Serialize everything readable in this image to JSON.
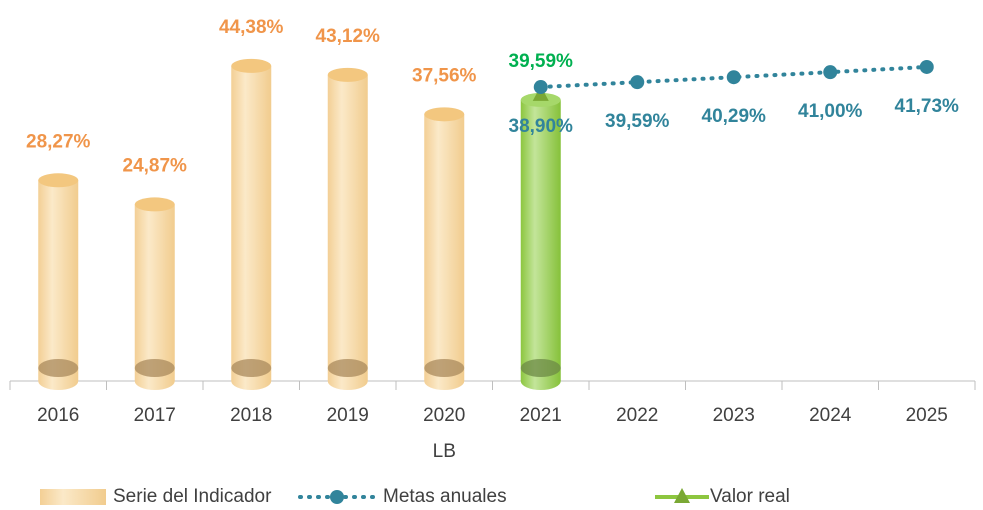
{
  "chart_data": {
    "type": "bar",
    "categories": [
      "2016",
      "2017",
      "2018",
      "2019",
      "2020",
      "2021",
      "2022",
      "2023",
      "2024",
      "2025"
    ],
    "category_notes": [
      null,
      null,
      null,
      null,
      "LB",
      null,
      null,
      null,
      null,
      null
    ],
    "ylim": [
      0,
      50
    ],
    "y2lim": [
      -2.5,
      47.5
    ],
    "series": [
      {
        "name": "Serie del Indicador",
        "type": "bar",
        "color": "#f6d9a6",
        "label_color": "#f0954a",
        "values": [
          28.27,
          24.87,
          44.38,
          43.12,
          37.56,
          null,
          null,
          null,
          null,
          null
        ],
        "value_labels": [
          "28,27%",
          "24,87%",
          "44,38%",
          "43,12%",
          "37,56%",
          null,
          null,
          null,
          null,
          null
        ]
      },
      {
        "name": "Metas anuales",
        "type": "line",
        "axis": "y2",
        "color": "#31849b",
        "label_color": "#31849b",
        "values": [
          null,
          null,
          null,
          null,
          null,
          38.9,
          39.59,
          40.29,
          41.0,
          41.73
        ],
        "value_labels": [
          null,
          null,
          null,
          null,
          null,
          "38,90%",
          "39,59%",
          "40,29%",
          "41,00%",
          "41,73%"
        ]
      },
      {
        "name": "Valor real",
        "type": "bar-marker",
        "color": "#92d050",
        "label_color": "#00b050",
        "values": [
          null,
          null,
          null,
          null,
          null,
          39.59,
          null,
          null,
          null,
          null
        ],
        "value_labels": [
          null,
          null,
          null,
          null,
          null,
          "39,59%",
          null,
          null,
          null,
          null
        ]
      }
    ]
  }
}
